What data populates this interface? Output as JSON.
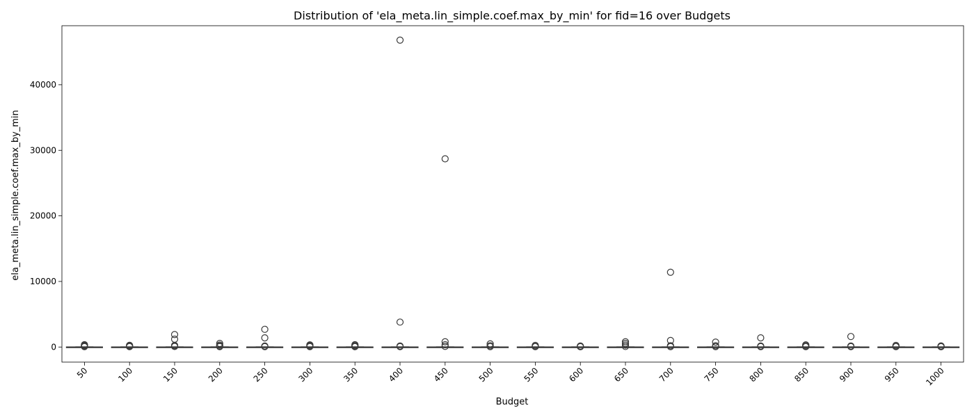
{
  "chart_data": {
    "type": "box",
    "title": "Distribution of 'ela_meta.lin_simple.coef.max_by_min' for fid=16 over Budgets",
    "xlabel": "Budget",
    "ylabel": "ela_meta.lin_simple.coef.max_by_min",
    "ylim": [
      -2300,
      49000
    ],
    "yticks": [
      0,
      10000,
      20000,
      30000,
      40000
    ],
    "legend": "none",
    "grid": false,
    "box_color": "#3f71a8",
    "line_color": "#3a3a3a",
    "categories": [
      "50",
      "100",
      "150",
      "200",
      "250",
      "300",
      "350",
      "400",
      "450",
      "500",
      "550",
      "600",
      "650",
      "700",
      "750",
      "800",
      "850",
      "900",
      "950",
      "1000"
    ],
    "boxes": [
      {
        "q1": 2,
        "median": 5,
        "q3": 12,
        "whisker_low": 1,
        "whisker_high": 25,
        "fliers": [
          60,
          120,
          200,
          280,
          350
        ]
      },
      {
        "q1": 2,
        "median": 5,
        "q3": 12,
        "whisker_low": 1,
        "whisker_high": 25,
        "fliers": [
          50,
          100,
          180,
          260
        ]
      },
      {
        "q1": 2,
        "median": 5,
        "q3": 12,
        "whisker_low": 1,
        "whisker_high": 25,
        "fliers": [
          80,
          150,
          250,
          1200,
          1900
        ]
      },
      {
        "q1": 2,
        "median": 5,
        "q3": 12,
        "whisker_low": 1,
        "whisker_high": 25,
        "fliers": [
          60,
          150,
          300,
          550
        ]
      },
      {
        "q1": 2,
        "median": 5,
        "q3": 12,
        "whisker_low": 1,
        "whisker_high": 25,
        "fliers": [
          60,
          150,
          1400,
          2700
        ]
      },
      {
        "q1": 2,
        "median": 5,
        "q3": 12,
        "whisker_low": 1,
        "whisker_high": 25,
        "fliers": [
          60,
          140,
          250,
          330
        ]
      },
      {
        "q1": 2,
        "median": 5,
        "q3": 12,
        "whisker_low": 1,
        "whisker_high": 25,
        "fliers": [
          50,
          120,
          220,
          350
        ]
      },
      {
        "q1": 2,
        "median": 5,
        "q3": 12,
        "whisker_low": 1,
        "whisker_high": 25,
        "fliers": [
          60,
          150,
          3800,
          46800
        ]
      },
      {
        "q1": 2,
        "median": 5,
        "q3": 12,
        "whisker_low": 1,
        "whisker_high": 25,
        "fliers": [
          100,
          350,
          800,
          28700
        ]
      },
      {
        "q1": 2,
        "median": 5,
        "q3": 12,
        "whisker_low": 1,
        "whisker_high": 25,
        "fliers": [
          60,
          200,
          480
        ]
      },
      {
        "q1": 2,
        "median": 5,
        "q3": 12,
        "whisker_low": 1,
        "whisker_high": 25,
        "fliers": [
          50,
          120,
          250
        ]
      },
      {
        "q1": 2,
        "median": 5,
        "q3": 12,
        "whisker_low": 1,
        "whisker_high": 25,
        "fliers": [
          40,
          90,
          150
        ]
      },
      {
        "q1": 2,
        "median": 5,
        "q3": 12,
        "whisker_low": 1,
        "whisker_high": 25,
        "fliers": [
          80,
          300,
          550,
          800
        ]
      },
      {
        "q1": 2,
        "median": 5,
        "q3": 12,
        "whisker_low": 1,
        "whisker_high": 25,
        "fliers": [
          60,
          200,
          1000,
          11400
        ]
      },
      {
        "q1": 2,
        "median": 5,
        "q3": 12,
        "whisker_low": 1,
        "whisker_high": 25,
        "fliers": [
          60,
          200,
          750
        ]
      },
      {
        "q1": 2,
        "median": 5,
        "q3": 12,
        "whisker_low": 1,
        "whisker_high": 25,
        "fliers": [
          60,
          150,
          1400
        ]
      },
      {
        "q1": 2,
        "median": 5,
        "q3": 12,
        "whisker_low": 1,
        "whisker_high": 25,
        "fliers": [
          50,
          120,
          250,
          330
        ]
      },
      {
        "q1": 2,
        "median": 5,
        "q3": 12,
        "whisker_low": 1,
        "whisker_high": 25,
        "fliers": [
          60,
          150,
          1600
        ]
      },
      {
        "q1": 2,
        "median": 5,
        "q3": 12,
        "whisker_low": 1,
        "whisker_high": 25,
        "fliers": [
          50,
          120,
          250
        ]
      },
      {
        "q1": 2,
        "median": 5,
        "q3": 12,
        "whisker_low": 1,
        "whisker_high": 25,
        "fliers": [
          40,
          100,
          170
        ]
      }
    ]
  }
}
